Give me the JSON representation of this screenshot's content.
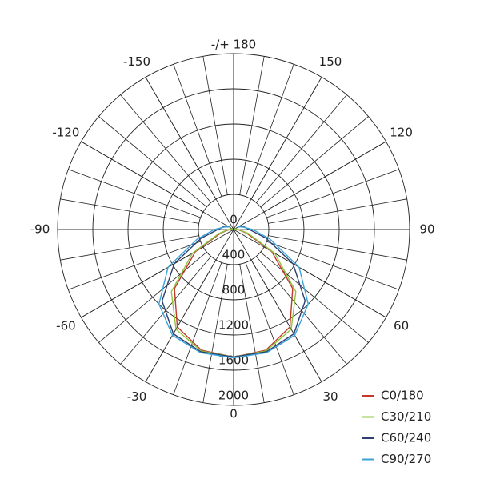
{
  "chart_data": {
    "type": "polar",
    "angles": [
      -120,
      -105,
      -90,
      -75,
      -60,
      -45,
      -30,
      -15,
      0,
      15,
      30,
      45,
      60,
      75,
      90,
      105,
      120
    ],
    "series": [
      {
        "name": "C0/180",
        "color": "#c0392b",
        "values": [
          10,
          20,
          50,
          150,
          500,
          950,
          1280,
          1420,
          1450,
          1420,
          1280,
          950,
          500,
          150,
          50,
          20,
          10
        ]
      },
      {
        "name": "C30/210",
        "color": "#8dc63f",
        "values": [
          10,
          30,
          60,
          170,
          540,
          1000,
          1310,
          1430,
          1450,
          1430,
          1310,
          1000,
          540,
          170,
          60,
          30,
          10
        ]
      },
      {
        "name": "C60/240",
        "color": "#2c3e6b",
        "values": [
          60,
          120,
          180,
          380,
          780,
          1150,
          1370,
          1440,
          1450,
          1440,
          1370,
          1150,
          780,
          380,
          180,
          120,
          60
        ]
      },
      {
        "name": "C90/270",
        "color": "#3ba3d9",
        "values": [
          60,
          110,
          220,
          430,
          860,
          1200,
          1390,
          1450,
          1460,
          1450,
          1390,
          1200,
          860,
          430,
          220,
          110,
          60
        ]
      }
    ],
    "rlim": [
      0,
      2000
    ],
    "rticks": [
      0,
      400,
      800,
      1200,
      1600,
      2000
    ],
    "angle_ticks": [
      0,
      30,
      60,
      90,
      120,
      150,
      {
        "value": 180,
        "label": "-/+ 180"
      },
      -150,
      -120,
      -90,
      -60,
      -30
    ],
    "legend": "lower right"
  }
}
